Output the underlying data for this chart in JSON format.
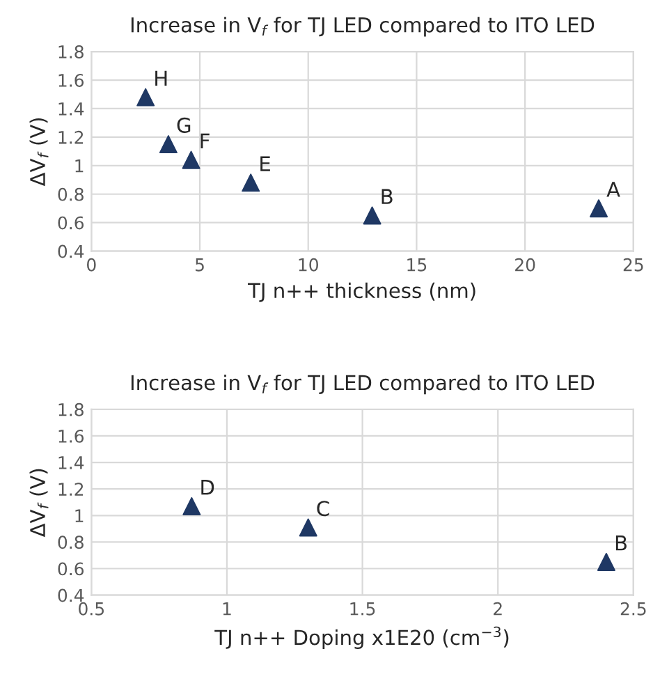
{
  "chart_data": [
    {
      "type": "scatter",
      "title": "Increase in V$_{f}$ for TJ LED compared to ITO LED",
      "xlabel": "TJ n++ thickness (nm)",
      "ylabel": "ΔV$_{f}$ (V)",
      "x": [
        2.5,
        3.55,
        4.6,
        7.35,
        12.95,
        23.4
      ],
      "series": [
        {
          "color": "#1f3864",
          "values": [
            1.48,
            1.15,
            1.04,
            0.88,
            0.65,
            0.7
          ]
        }
      ],
      "annotations": [
        {
          "text": "H",
          "x": 2.5,
          "y": 1.48
        },
        {
          "text": "G",
          "x": 3.55,
          "y": 1.15
        },
        {
          "text": "F",
          "x": 4.6,
          "y": 1.04
        },
        {
          "text": "E",
          "x": 7.35,
          "y": 0.88
        },
        {
          "text": "B",
          "x": 12.95,
          "y": 0.65
        },
        {
          "text": "A",
          "x": 23.4,
          "y": 0.7
        }
      ],
      "xlim": [
        0,
        25
      ],
      "xticks": [
        0,
        5,
        10,
        15,
        20,
        25
      ],
      "ylim": [
        0.4,
        1.8
      ],
      "yticks": [
        0.4,
        0.6,
        0.8,
        1,
        1.2,
        1.4,
        1.6,
        1.8
      ],
      "grid": true,
      "marker": "triangle"
    },
    {
      "type": "scatter",
      "title": "Increase in V$_{f}$ for TJ LED compared to ITO LED",
      "xlabel": "TJ n++ Doping x1E20 (cm$^{−3}$)",
      "ylabel": "ΔV$_{f}$ (V)",
      "x": [
        0.87,
        1.3,
        2.4
      ],
      "series": [
        {
          "color": "#1f3864",
          "values": [
            1.07,
            0.91,
            0.65
          ]
        }
      ],
      "annotations": [
        {
          "text": "D",
          "x": 0.87,
          "y": 1.07
        },
        {
          "text": "C",
          "x": 1.3,
          "y": 0.91
        },
        {
          "text": "B",
          "x": 2.4,
          "y": 0.65
        }
      ],
      "xlim": [
        0.5,
        2.5
      ],
      "xticks": [
        0.5,
        1,
        1.5,
        2,
        2.5
      ],
      "ylim": [
        0.4,
        1.8
      ],
      "yticks": [
        0.4,
        0.6,
        0.8,
        1,
        1.2,
        1.4,
        1.6,
        1.8
      ],
      "grid": true,
      "marker": "triangle"
    }
  ]
}
